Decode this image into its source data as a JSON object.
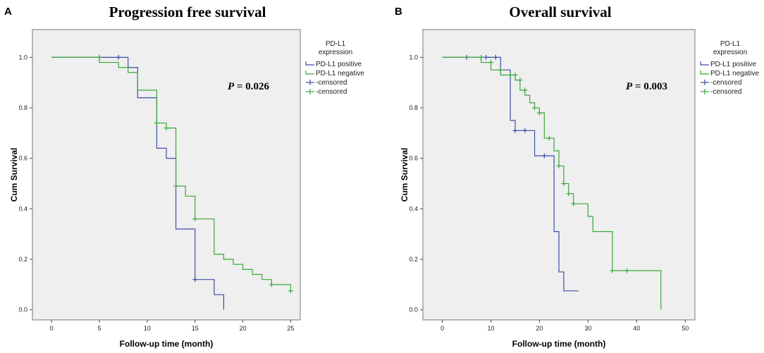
{
  "colors": {
    "positive": "#3b4ea3",
    "negative": "#3aa63a",
    "plot_bg": "#efefef",
    "frame": "#777777"
  },
  "chart_data": [
    {
      "type": "line",
      "panel": "A",
      "title": "Progression free survival",
      "xlabel": "Follow-up time (month)",
      "ylabel": "Cum Survival",
      "xlim": [
        -2,
        26
      ],
      "ylim": [
        -0.04,
        1.11
      ],
      "xticks": [
        0,
        5,
        10,
        15,
        20,
        25
      ],
      "yticks": [
        0.0,
        0.2,
        0.4,
        0.6,
        0.8,
        1.0
      ],
      "ytick_labels": [
        "0.0",
        "0.2",
        "0.4",
        "0.6",
        "0.8",
        "1.0"
      ],
      "p_label": "P",
      "p_value": "= 0.026",
      "legend": {
        "title_line1": "PD-L1",
        "title_line2": "expression",
        "entries": [
          "PD-L1 positive",
          "PD-L1 negative",
          "-censored",
          "-censored"
        ],
        "placement": "right"
      },
      "series": [
        {
          "name": "PD-L1 positive",
          "color": "#3b4ea3",
          "steps": [
            [
              0,
              1.0
            ],
            [
              8,
              0.96
            ],
            [
              9,
              0.84
            ],
            [
              11,
              0.64
            ],
            [
              12,
              0.6
            ],
            [
              13,
              0.32
            ],
            [
              15,
              0.12
            ],
            [
              17,
              0.06
            ],
            [
              18,
              0.0
            ]
          ],
          "end_x": 18,
          "censored": [
            [
              5,
              1.0
            ],
            [
              7,
              1.0
            ],
            [
              15,
              0.12
            ]
          ]
        },
        {
          "name": "PD-L1 negative",
          "color": "#3aa63a",
          "steps": [
            [
              0,
              1.0
            ],
            [
              5,
              0.98
            ],
            [
              7,
              0.96
            ],
            [
              8,
              0.94
            ],
            [
              9,
              0.87
            ],
            [
              11,
              0.74
            ],
            [
              12,
              0.72
            ],
            [
              13,
              0.49
            ],
            [
              14,
              0.45
            ],
            [
              15,
              0.36
            ],
            [
              17,
              0.22
            ],
            [
              18,
              0.2
            ],
            [
              19,
              0.18
            ],
            [
              20,
              0.16
            ],
            [
              21,
              0.14
            ],
            [
              22,
              0.12
            ],
            [
              23,
              0.1
            ],
            [
              25,
              0.08
            ]
          ],
          "end_x": 25,
          "censored": [
            [
              5,
              1.0
            ],
            [
              11,
              0.74
            ],
            [
              12,
              0.72
            ],
            [
              13,
              0.49
            ],
            [
              15,
              0.36
            ],
            [
              23,
              0.1
            ],
            [
              25,
              0.075
            ]
          ]
        }
      ]
    },
    {
      "type": "line",
      "panel": "B",
      "title": "Overall survival",
      "xlabel": "Follow-up time (month)",
      "ylabel": "Cum Survival",
      "xlim": [
        -4,
        52
      ],
      "ylim": [
        -0.04,
        1.11
      ],
      "xticks": [
        0,
        10,
        20,
        30,
        40,
        50
      ],
      "yticks": [
        0.0,
        0.2,
        0.4,
        0.6,
        0.8,
        1.0
      ],
      "ytick_labels": [
        "0.0",
        "0.2",
        "0.4",
        "0.6",
        "0.8",
        "1.0"
      ],
      "p_label": "P",
      "p_value": "= 0.003",
      "legend": {
        "title_line1": "PD-L1",
        "title_line2": "expression",
        "entries": [
          "PD-L1 positive",
          "PD-L1 negative",
          "-censored",
          "-censored"
        ],
        "placement": "right"
      },
      "series": [
        {
          "name": "PD-L1 positive",
          "color": "#3b4ea3",
          "steps": [
            [
              0,
              1.0
            ],
            [
              12,
              0.95
            ],
            [
              14,
              0.75
            ],
            [
              15,
              0.71
            ],
            [
              19,
              0.61
            ],
            [
              22,
              0.61
            ],
            [
              23,
              0.31
            ],
            [
              24,
              0.15
            ],
            [
              25,
              0.075
            ]
          ],
          "end_x": 28,
          "censored": [
            [
              5,
              1.0
            ],
            [
              9,
              1.0
            ],
            [
              11,
              1.0
            ],
            [
              15,
              0.71
            ],
            [
              17,
              0.71
            ],
            [
              21,
              0.61
            ]
          ]
        },
        {
          "name": "PD-L1 negative",
          "color": "#3aa63a",
          "steps": [
            [
              0,
              1.0
            ],
            [
              8,
              0.98
            ],
            [
              10,
              0.95
            ],
            [
              12,
              0.93
            ],
            [
              15,
              0.91
            ],
            [
              16,
              0.87
            ],
            [
              17,
              0.85
            ],
            [
              18,
              0.82
            ],
            [
              19,
              0.8
            ],
            [
              20,
              0.78
            ],
            [
              21,
              0.68
            ],
            [
              23,
              0.63
            ],
            [
              24,
              0.57
            ],
            [
              25,
              0.5
            ],
            [
              26,
              0.46
            ],
            [
              27,
              0.42
            ],
            [
              30,
              0.37
            ],
            [
              31,
              0.31
            ],
            [
              35,
              0.155
            ],
            [
              45,
              0.0
            ]
          ],
          "end_x": 45,
          "censored": [
            [
              8,
              1.0
            ],
            [
              10,
              0.98
            ],
            [
              12,
              0.95
            ],
            [
              14,
              0.93
            ],
            [
              15,
              0.93
            ],
            [
              16,
              0.91
            ],
            [
              17,
              0.87
            ],
            [
              19,
              0.8
            ],
            [
              20,
              0.78
            ],
            [
              22,
              0.68
            ],
            [
              24,
              0.57
            ],
            [
              25,
              0.5
            ],
            [
              26,
              0.46
            ],
            [
              27,
              0.42
            ],
            [
              35,
              0.155
            ],
            [
              38,
              0.155
            ]
          ]
        }
      ]
    }
  ]
}
